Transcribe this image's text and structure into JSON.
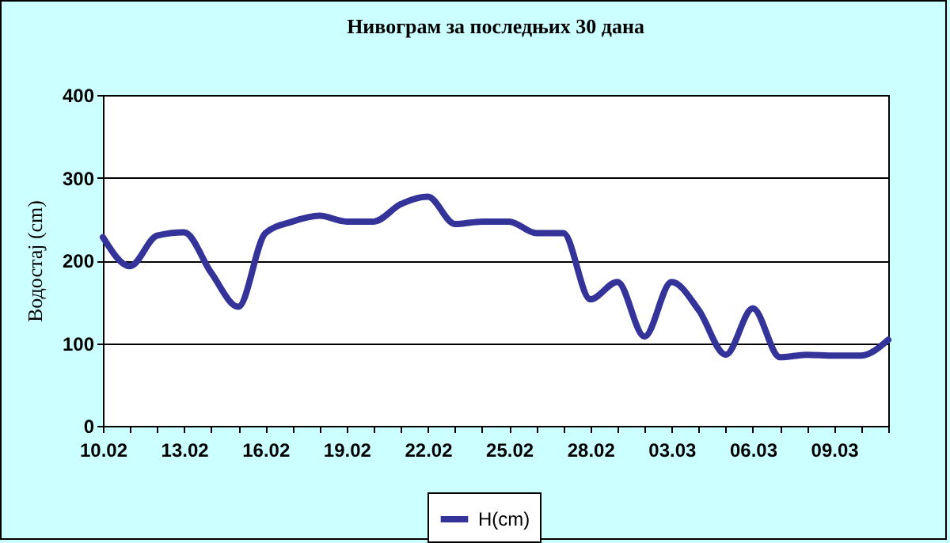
{
  "chart_data": {
    "type": "line",
    "title": "Нивограм за последњих 30 дана",
    "ylabel": "Водостај (cm)",
    "categories": [
      "10.02",
      null,
      null,
      "13.02",
      null,
      null,
      "16.02",
      null,
      null,
      "19.02",
      null,
      null,
      "22.02",
      null,
      null,
      "25.02",
      null,
      null,
      "28.02",
      null,
      null,
      "03.03",
      null,
      null,
      "06.03",
      null,
      null,
      "09.03",
      null,
      null
    ],
    "series": [
      {
        "name": "H(cm)",
        "color": "#333399",
        "values": [
          228,
          193,
          230,
          234,
          185,
          144,
          233,
          247,
          254,
          247,
          247,
          268,
          277,
          244,
          247,
          247,
          233,
          233,
          153,
          174,
          108,
          174,
          140,
          86,
          142,
          83,
          86,
          85,
          85,
          104
        ]
      }
    ],
    "ylim": [
      0,
      400
    ],
    "yticks": [
      0,
      100,
      200,
      300,
      400
    ],
    "grid": "y",
    "legend": "bottom",
    "marker": "none",
    "line_style": "solid"
  }
}
